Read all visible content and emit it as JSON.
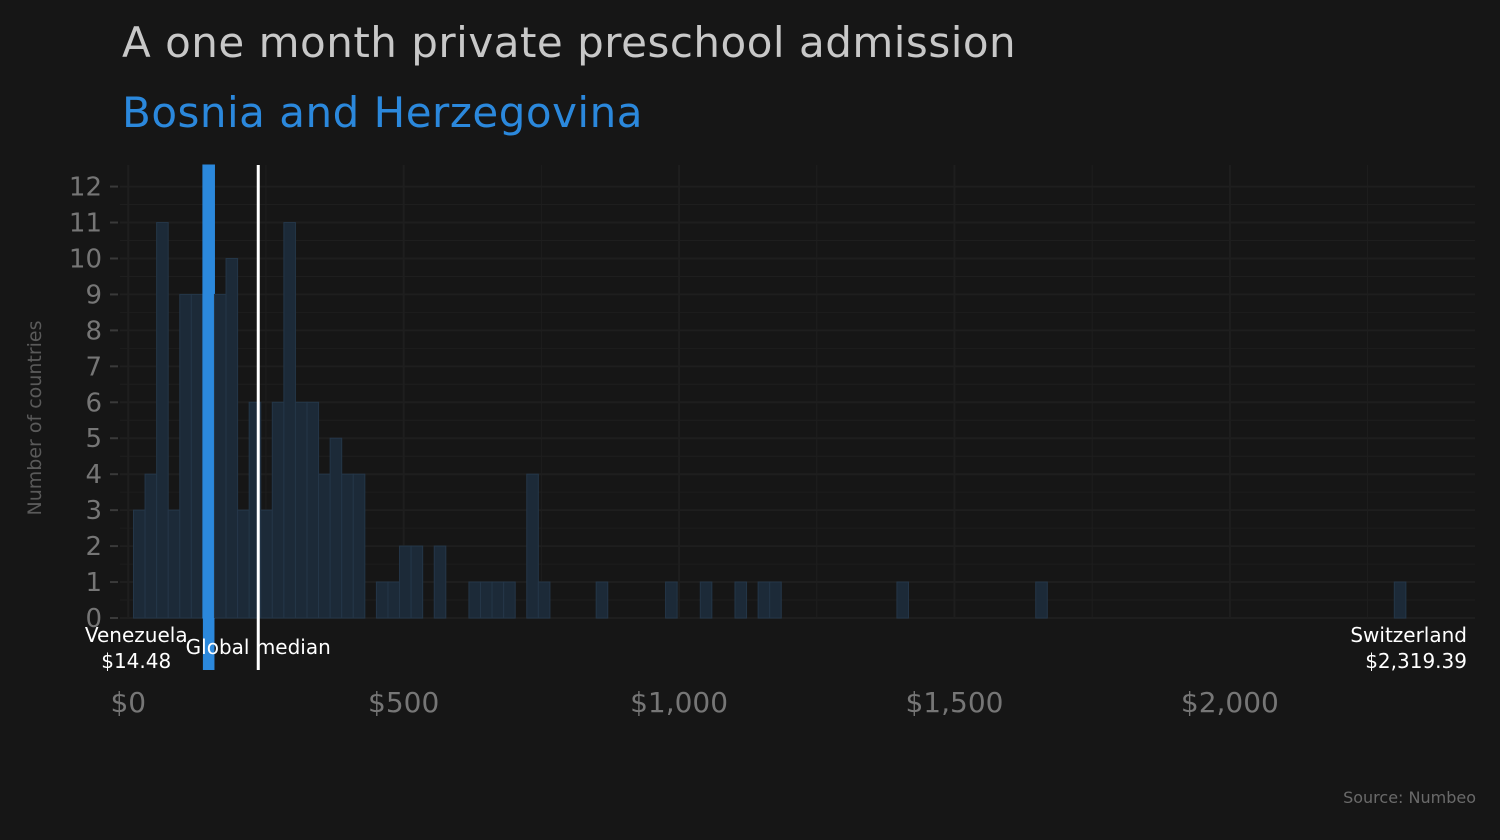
{
  "title": "A one month private preschool admission",
  "subtitle": "Bosnia and Herzegovina",
  "source": "Source: Numbeo",
  "colors": {
    "background": "#161616",
    "highlight": "#2b88dc",
    "bar_fill": "#1c2a38",
    "bar_stroke": "#243648",
    "grid": "#1e1e1e",
    "median_line": "#ffffff",
    "text_muted": "#767676"
  },
  "chart_data": {
    "type": "bar",
    "xlabel": "",
    "ylabel": "Number of countries",
    "xlim": [
      -15,
      2445
    ],
    "ylim": [
      0,
      12.6
    ],
    "bin_width": 21,
    "x_ticks": [
      0,
      500,
      1000,
      1500,
      2000
    ],
    "x_tick_labels": [
      "$0",
      "$500",
      "$1,000",
      "$1,500",
      "$2,000"
    ],
    "y_ticks": [
      0,
      1,
      2,
      3,
      4,
      5,
      6,
      7,
      8,
      9,
      10,
      11,
      12
    ],
    "y_tick_labels": [
      "0",
      "1",
      "2",
      "3",
      "4",
      "5",
      "6",
      "7",
      "8",
      "9",
      "10",
      "11",
      "12"
    ],
    "bins": [
      {
        "x": 20,
        "count": 3
      },
      {
        "x": 41,
        "count": 4
      },
      {
        "x": 62,
        "count": 11
      },
      {
        "x": 83,
        "count": 3
      },
      {
        "x": 104,
        "count": 9
      },
      {
        "x": 125,
        "count": 9
      },
      {
        "x": 146,
        "count": 12.6
      },
      {
        "x": 167,
        "count": 9
      },
      {
        "x": 188,
        "count": 10
      },
      {
        "x": 209,
        "count": 3
      },
      {
        "x": 230,
        "count": 6
      },
      {
        "x": 251,
        "count": 3
      },
      {
        "x": 272,
        "count": 6
      },
      {
        "x": 293,
        "count": 11
      },
      {
        "x": 314,
        "count": 6
      },
      {
        "x": 335,
        "count": 6
      },
      {
        "x": 356,
        "count": 4
      },
      {
        "x": 377,
        "count": 5
      },
      {
        "x": 398,
        "count": 4
      },
      {
        "x": 419,
        "count": 4
      },
      {
        "x": 461,
        "count": 1
      },
      {
        "x": 482,
        "count": 1
      },
      {
        "x": 503,
        "count": 2
      },
      {
        "x": 524,
        "count": 2
      },
      {
        "x": 566,
        "count": 2
      },
      {
        "x": 629,
        "count": 1
      },
      {
        "x": 650,
        "count": 1
      },
      {
        "x": 671,
        "count": 1
      },
      {
        "x": 692,
        "count": 1
      },
      {
        "x": 734,
        "count": 4
      },
      {
        "x": 755,
        "count": 1
      },
      {
        "x": 860,
        "count": 1
      },
      {
        "x": 986,
        "count": 1
      },
      {
        "x": 1049,
        "count": 1
      },
      {
        "x": 1112,
        "count": 1
      },
      {
        "x": 1154,
        "count": 1
      },
      {
        "x": 1175,
        "count": 1
      },
      {
        "x": 1406,
        "count": 1
      },
      {
        "x": 1658,
        "count": 1
      },
      {
        "x": 2309,
        "count": 1
      }
    ],
    "highlight": {
      "x": 146,
      "label": "Bosnia and Herzegovina"
    },
    "median": {
      "value": 236,
      "label": "Global median"
    },
    "annotations": [
      {
        "name": "Venezuela",
        "value": "$14.48",
        "x": 14.48,
        "align": "center"
      },
      {
        "name": "Switzerland",
        "value": "$2,319.39",
        "x": 2319.39,
        "align": "right"
      }
    ]
  }
}
